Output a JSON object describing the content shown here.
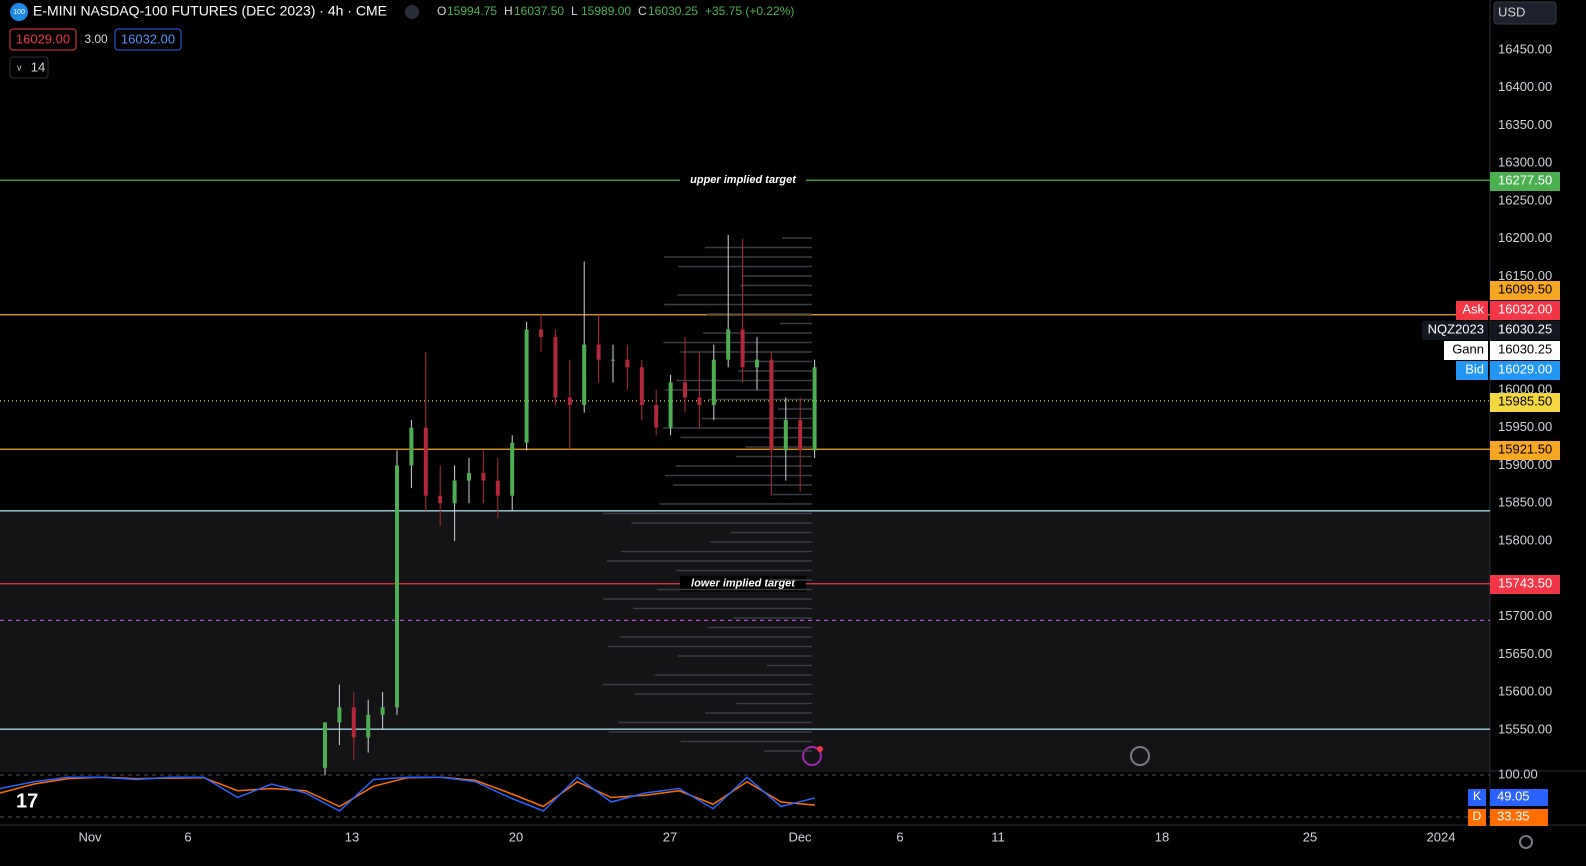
{
  "header": {
    "logo": "100",
    "title": "E-MINI NASDAQ-100 FUTURES (DEC 2023) · 4h · CME",
    "ohlc": [
      {
        "k": "O",
        "v": "15994.75"
      },
      {
        "k": "H",
        "v": "16037.50"
      },
      {
        "k": "L",
        "v": "15989.00"
      },
      {
        "k": "C",
        "v": "16030.25"
      }
    ],
    "change": "+35.75 (+0.22%)",
    "bid_box": "16029.00",
    "spread": "3.00",
    "ask_box": "16032.00",
    "indicator_count": "14",
    "currency": "USD"
  },
  "chart_data": {
    "type": "candlestick",
    "ylim": [
      15497,
      16516
    ],
    "yticks": [
      {
        "value": 16450,
        "label": "16450.00"
      },
      {
        "value": 16400,
        "label": "16400.00"
      },
      {
        "value": 16350,
        "label": "16350.00"
      },
      {
        "value": 16300,
        "label": "16300.00"
      },
      {
        "value": 16250,
        "label": "16250.00"
      },
      {
        "value": 16200,
        "label": "16200.00"
      },
      {
        "value": 16150,
        "label": "16150.00"
      },
      {
        "value": 16000,
        "label": "16000.00"
      },
      {
        "value": 15950,
        "label": "15950.00"
      },
      {
        "value": 15900,
        "label": "15900.00"
      },
      {
        "value": 15850,
        "label": "15850.00"
      },
      {
        "value": 15800,
        "label": "15800.00"
      },
      {
        "value": 15700,
        "label": "15700.00"
      },
      {
        "value": 15650,
        "label": "15650.00"
      },
      {
        "value": 15600,
        "label": "15600.00"
      },
      {
        "value": 15550,
        "label": "15550.00"
      }
    ],
    "x_labels": [
      "Nov",
      "6",
      "13",
      "20",
      "27",
      "Dec",
      "6",
      "11",
      "18",
      "25",
      "2024"
    ],
    "up_color": "#4caf50",
    "down_color": "#b2283a",
    "candles": [
      [
        15500,
        15560,
        15490,
        15560
      ],
      [
        15560,
        15610,
        15530,
        15580
      ],
      [
        15580,
        15600,
        15510,
        15540
      ],
      [
        15540,
        15590,
        15520,
        15570
      ],
      [
        15570,
        15600,
        15550,
        15580
      ],
      [
        15580,
        15920,
        15570,
        15900
      ],
      [
        15900,
        15960,
        15870,
        15950
      ],
      [
        15950,
        16050,
        15840,
        15860
      ],
      [
        15860,
        15900,
        15820,
        15850
      ],
      [
        15850,
        15900,
        15800,
        15880
      ],
      [
        15880,
        15910,
        15850,
        15890
      ],
      [
        15890,
        15920,
        15850,
        15880
      ],
      [
        15880,
        15910,
        15830,
        15860
      ],
      [
        15860,
        15940,
        15840,
        15930
      ],
      [
        15930,
        16090,
        15920,
        16080
      ],
      [
        16080,
        16100,
        16050,
        16070
      ],
      [
        16070,
        16080,
        15980,
        15990
      ],
      [
        15990,
        16040,
        15920,
        15980
      ],
      [
        15980,
        16170,
        15970,
        16060
      ],
      [
        16060,
        16100,
        16010,
        16040
      ],
      [
        16040,
        16060,
        16010,
        16040
      ],
      [
        16040,
        16060,
        16000,
        16030
      ],
      [
        16030,
        16040,
        15960,
        15980
      ],
      [
        15980,
        16000,
        15940,
        15950
      ],
      [
        15950,
        16020,
        15940,
        16010
      ],
      [
        16010,
        16070,
        15970,
        15990
      ],
      [
        15990,
        16050,
        15950,
        15980
      ],
      [
        15980,
        16060,
        15960,
        16040
      ],
      [
        16040,
        16205,
        16030,
        16080
      ],
      [
        16080,
        16200,
        16010,
        16030
      ],
      [
        16030,
        16070,
        16000,
        16040
      ],
      [
        16040,
        16050,
        15860,
        15920
      ],
      [
        15920,
        15990,
        15880,
        15960
      ],
      [
        15960,
        15990,
        15865,
        15920
      ],
      [
        15920,
        16040,
        15910,
        16030
      ]
    ],
    "lines": [
      {
        "value": 16277.5,
        "color": "#4caf50",
        "label": "upper implied target",
        "box": "16277.50",
        "style": "solid"
      },
      {
        "value": 16099.5,
        "color": "#f5a623",
        "box": "16099.50",
        "style": "solid"
      },
      {
        "value": 15985.5,
        "color": "#f5d742",
        "box": "15985.50",
        "style": "dotted"
      },
      {
        "value": 15921.5,
        "color": "#f5a623",
        "box": "15921.50",
        "style": "solid"
      },
      {
        "value": 15840,
        "color": "#9fd3e0",
        "style": "solid"
      },
      {
        "value": 15743.5,
        "color": "#f23645",
        "label": "lower implied target",
        "box": "15743.50",
        "style": "solid"
      },
      {
        "value": 15695,
        "color": "#b44fd0",
        "style": "dashed"
      },
      {
        "value": 15551,
        "color": "#9fd3e0",
        "style": "solid"
      }
    ],
    "quotes": [
      {
        "name": "Ask",
        "value": "16032.00"
      },
      {
        "name": "NQZ2023",
        "value": "16030.25"
      },
      {
        "name": "Gann",
        "value": "16030.25"
      },
      {
        "name": "Bid",
        "value": "16029.00"
      }
    ],
    "stoch": {
      "ylim": [
        0,
        100
      ],
      "top_label": "100.00",
      "k_name": "K",
      "k_label": "49.05",
      "d_name": "D",
      "d_label": "33.35",
      "k": [
        70,
        85,
        95,
        95,
        90,
        95,
        95,
        50,
        80,
        60,
        20,
        90,
        95,
        95,
        85,
        50,
        20,
        95,
        40,
        60,
        70,
        25,
        95,
        30,
        49
      ],
      "d": [
        60,
        80,
        92,
        95,
        92,
        93,
        94,
        65,
        70,
        65,
        30,
        75,
        94,
        95,
        88,
        60,
        30,
        85,
        50,
        55,
        65,
        35,
        85,
        40,
        33
      ]
    }
  }
}
